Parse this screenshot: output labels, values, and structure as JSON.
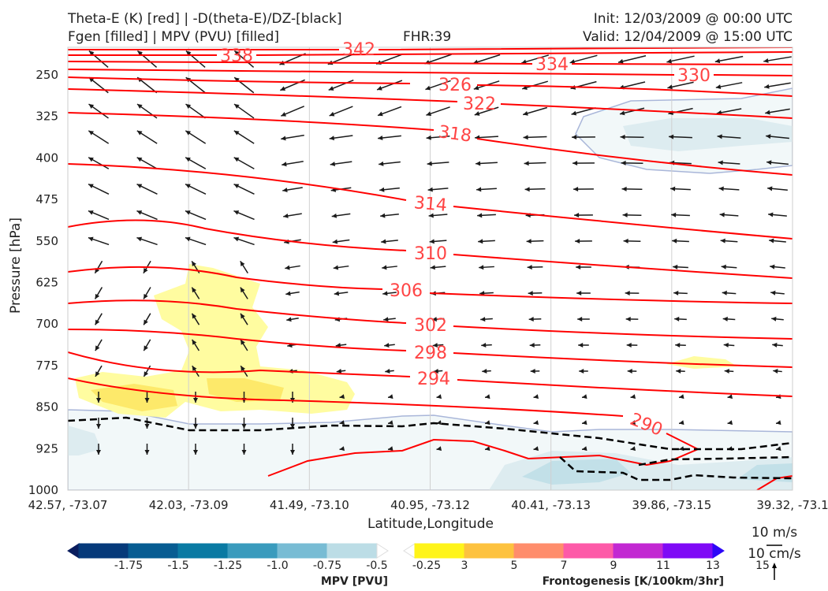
{
  "header": {
    "title_line1": "Theta-E (K) [red] | -D(theta-E)/DZ-[black]",
    "title_line2": "Fgen [filled] | MPV (PVU) [filled]",
    "fhr": "FHR:39",
    "init": "Init: 12/03/2009 @ 00:00 UTC",
    "valid": "Valid: 12/04/2009 @ 15:00 UTC"
  },
  "chart_data": {
    "type": "contour-cross-section",
    "xlabel": "Latitude,Longitude",
    "ylabel": "Pressure [hPa]",
    "ylim": [
      1000,
      200
    ],
    "x_ticks": [
      "42.57, -73.07",
      "42.03, -73.09",
      "41.49, -73.10",
      "40.95, -73.12",
      "40.41, -73.13",
      "39.86, -73.15",
      "39.32, -73.1"
    ],
    "y_ticks": [
      250,
      325,
      400,
      475,
      550,
      625,
      700,
      775,
      850,
      925,
      1000
    ],
    "theta_e_contour_labels": [
      "342",
      "338",
      "334",
      "330",
      "326",
      "322",
      "318",
      "314",
      "310",
      "306",
      "302",
      "298",
      "294",
      "290"
    ],
    "wind_reference": {
      "horizontal": "10 m/s",
      "vertical": "10 cm/s"
    },
    "mpv_colorbar": {
      "label": "MPV [PVU]",
      "ticks": [
        "-1.75",
        "-1.5",
        "-1.25",
        "-1.0",
        "-0.75",
        "-0.5",
        "-0.25"
      ],
      "colors": [
        "#0a1d5e",
        "#063a7a",
        "#075c92",
        "#0a7aa3",
        "#3a9bbd",
        "#78bcd4",
        "#bcdde6",
        "#ffffff"
      ]
    },
    "fgen_colorbar": {
      "label": "Frontogenesis [K/100km/3hr]",
      "ticks": [
        "3",
        "5",
        "7",
        "9",
        "11",
        "13",
        "15"
      ],
      "colors": [
        "#ffffff",
        "#fff41a",
        "#fdc23f",
        "#ff8d6c",
        "#fd5aa8",
        "#c228d2",
        "#7f0af6",
        "#2d06f7"
      ]
    }
  }
}
